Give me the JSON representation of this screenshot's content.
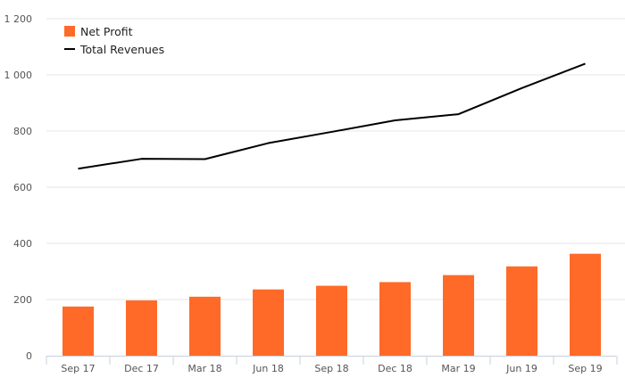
{
  "chart_data": {
    "type": "bar",
    "categories": [
      "Sep 17",
      "Dec 17",
      "Mar 18",
      "Jun 18",
      "Sep 18",
      "Dec 18",
      "Mar 19",
      "Jun 19",
      "Sep 19"
    ],
    "series": [
      {
        "name": "Net Profit",
        "type": "bar",
        "color": "#ff6a28",
        "values": [
          175,
          197,
          210,
          236,
          249,
          262,
          287,
          318,
          363
        ]
      },
      {
        "name": "Total Revenues",
        "type": "line",
        "color": "#000000",
        "values": [
          666,
          701,
          700,
          757,
          797,
          838,
          860,
          953,
          1040
        ]
      }
    ],
    "y_ticks": [
      "0",
      "200",
      "400",
      "600",
      "800",
      "1 000",
      "1 200"
    ],
    "ylim": [
      0,
      1200
    ],
    "grid": true,
    "legend_position": "top-left"
  }
}
